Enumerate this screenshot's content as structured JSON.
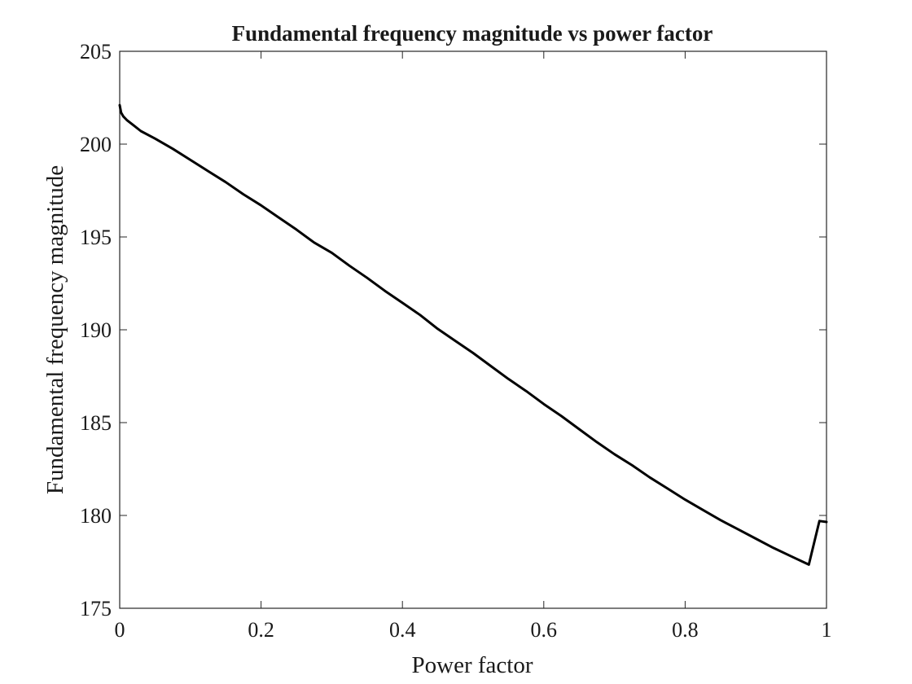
{
  "chart_data": {
    "type": "line",
    "title": "Fundamental frequency magnitude vs power factor",
    "xlabel": "Power factor",
    "ylabel": "Fundamental frequency magnitude",
    "xlim": [
      0,
      1
    ],
    "ylim": [
      175,
      205
    ],
    "xticks": [
      0,
      0.2,
      0.4,
      0.6,
      0.8,
      1
    ],
    "xtick_labels": [
      "0",
      "0.2",
      "0.4",
      "0.6",
      "0.8",
      "1"
    ],
    "yticks": [
      175,
      180,
      185,
      190,
      195,
      200,
      205
    ],
    "ytick_labels": [
      "175",
      "180",
      "185",
      "190",
      "195",
      "200",
      "205"
    ],
    "grid": false,
    "series": [
      {
        "color": "#000000",
        "x": [
          0,
          0.002,
          0.005,
          0.01,
          0.02,
          0.03,
          0.05,
          0.075,
          0.1,
          0.125,
          0.15,
          0.175,
          0.2,
          0.225,
          0.25,
          0.275,
          0.3,
          0.325,
          0.35,
          0.375,
          0.4,
          0.425,
          0.45,
          0.475,
          0.5,
          0.525,
          0.55,
          0.575,
          0.6,
          0.625,
          0.65,
          0.675,
          0.7,
          0.725,
          0.75,
          0.775,
          0.8,
          0.825,
          0.85,
          0.875,
          0.9,
          0.925,
          0.95,
          0.975,
          0.99,
          1
        ],
        "y": [
          202.1,
          201.7,
          201.5,
          201.3,
          201.0,
          200.7,
          200.3,
          199.75,
          199.15,
          198.55,
          197.95,
          197.3,
          196.7,
          196.05,
          195.4,
          194.7,
          194.15,
          193.45,
          192.8,
          192.1,
          191.45,
          190.8,
          190.05,
          189.4,
          188.75,
          188.05,
          187.35,
          186.7,
          186.0,
          185.35,
          184.65,
          183.95,
          183.3,
          182.7,
          182.05,
          181.45,
          180.85,
          180.3,
          179.75,
          179.25,
          178.75,
          178.25,
          177.8,
          177.35,
          179.7,
          179.65
        ]
      }
    ]
  }
}
